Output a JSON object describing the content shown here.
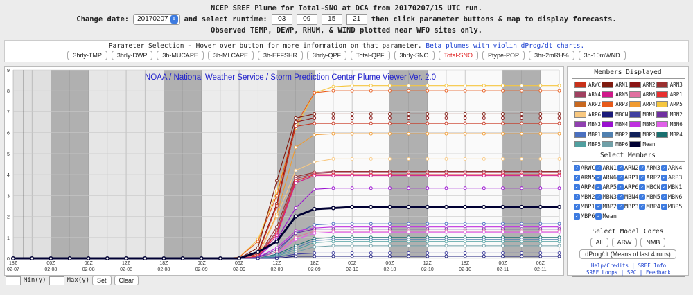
{
  "header": {
    "line1": "NCEP SREF Plume for Total-SNO at DCA from 20170207/15 UTC run.",
    "change_date_label": "Change date:",
    "date_value": "20170207",
    "select_runtime_label": "and select runtime:",
    "runtimes": [
      "03",
      "09",
      "15",
      "21"
    ],
    "line2_tail": "then click parameter buttons & map to display forecasts.",
    "line3": "Observed TEMP, DEWP, RHUM, & WIND plotted near WFO sites only."
  },
  "params": {
    "caption": "Parameter Selection - Hover over button for more information on that parameter.",
    "beta_link": "Beta plumes with violin dProg/dt charts.",
    "buttons": [
      "3hrly-TMP",
      "3hrly-DWP",
      "3h-MUCAPE",
      "3h-MLCAPE",
      "3h-EFFSHR",
      "3hrly-QPF",
      "Total-QPF",
      "3hrly-SNO",
      "Total-SNO",
      "Ptype-POP",
      "3hr-2mRH%",
      "3h-10mWND"
    ],
    "active": "Total-SNO"
  },
  "members_title": "Members Displayed",
  "select_members_title": "Select Members",
  "members": [
    {
      "name": "ARWC",
      "color": "#c8311a"
    },
    {
      "name": "ARN1",
      "color": "#7f1b10"
    },
    {
      "name": "ARN2",
      "color": "#8b1515"
    },
    {
      "name": "ARN3",
      "color": "#9a3030"
    },
    {
      "name": "ARN4",
      "color": "#a04060"
    },
    {
      "name": "ARN5",
      "color": "#d01a8a"
    },
    {
      "name": "ARN6",
      "color": "#e070a0"
    },
    {
      "name": "ARP1",
      "color": "#e83030"
    },
    {
      "name": "ARP2",
      "color": "#c86820"
    },
    {
      "name": "ARP3",
      "color": "#e85a1a"
    },
    {
      "name": "ARP4",
      "color": "#f09a30"
    },
    {
      "name": "ARP5",
      "color": "#f5c640"
    },
    {
      "name": "ARP6",
      "color": "#f8c880"
    },
    {
      "name": "MBCN",
      "color": "#1a1a7a"
    },
    {
      "name": "MBN1",
      "color": "#4040a0"
    },
    {
      "name": "MBN2",
      "color": "#7030a0"
    },
    {
      "name": "MBN3",
      "color": "#9040b0"
    },
    {
      "name": "MBN4",
      "color": "#9a10d0"
    },
    {
      "name": "MBN5",
      "color": "#c030e0"
    },
    {
      "name": "MBN6",
      "color": "#e060e8"
    },
    {
      "name": "MBP1",
      "color": "#4a70c0"
    },
    {
      "name": "MBP2",
      "color": "#5080b0"
    },
    {
      "name": "MBP3",
      "color": "#10205a"
    },
    {
      "name": "MBP4",
      "color": "#1a7070"
    },
    {
      "name": "MBP5",
      "color": "#50a0a0"
    },
    {
      "name": "MBP6",
      "color": "#70a0a8"
    },
    {
      "name": "Mean",
      "color": "#000033"
    }
  ],
  "select_members": [
    "ARWC",
    "ARN1",
    "ARN2",
    "ARN3",
    "ARN4",
    "ARN5",
    "ARN6",
    "ARP1",
    "ARP2",
    "ARP3",
    "ARP4",
    "ARP5",
    "ARP6",
    "MBCN",
    "MBN1",
    "MBN2",
    "MBN3",
    "MBN4",
    "MBN5",
    "MBN6",
    "MBP1",
    "MBP2",
    "MBP3",
    "MBP4",
    "MBP5",
    "MBP6",
    "Mean"
  ],
  "cores": {
    "title": "Select Model Cores",
    "buttons": [
      "All",
      "ARW",
      "NMB"
    ],
    "dprog": "dProg/dt (Means of last 4 runs)"
  },
  "links": {
    "help": "Help/Credits",
    "sref_info": "SREF Info",
    "sref_loops": "SREF Loops",
    "spc": "SPC",
    "feedback": "Feedback"
  },
  "footer": {
    "min_label": "Min(y)",
    "max_label": "Max(y)",
    "set": "Set",
    "clear": "Clear"
  },
  "chart_data": {
    "type": "line",
    "title": "NOAA / National Weather Service / Storm Prediction Center Plume Viewer Ver. 2.0",
    "ylim": [
      0,
      9
    ],
    "yticks": [
      "0",
      "1",
      "2",
      "3",
      "4",
      "5",
      "6",
      "7",
      "8",
      "9"
    ],
    "x_index_range": [
      0,
      29
    ],
    "xticks": [
      {
        "i": 0,
        "hr": "18Z",
        "date": "02-07"
      },
      {
        "i": 2,
        "hr": "00Z",
        "date": "02-08"
      },
      {
        "i": 4,
        "hr": "06Z",
        "date": "02-08"
      },
      {
        "i": 6,
        "hr": "12Z",
        "date": "02-08"
      },
      {
        "i": 8,
        "hr": "18Z",
        "date": "02-08"
      },
      {
        "i": 10,
        "hr": "00Z",
        "date": "02-09"
      },
      {
        "i": 12,
        "hr": "06Z",
        "date": "02-09"
      },
      {
        "i": 14,
        "hr": "12Z",
        "date": "02-09"
      },
      {
        "i": 16,
        "hr": "18Z",
        "date": "02-09"
      },
      {
        "i": 18,
        "hr": "00Z",
        "date": "02-10"
      },
      {
        "i": 20,
        "hr": "06Z",
        "date": "02-10"
      },
      {
        "i": 22,
        "hr": "12Z",
        "date": "02-10"
      },
      {
        "i": 24,
        "hr": "18Z",
        "date": "02-10"
      },
      {
        "i": 26,
        "hr": "00Z",
        "date": "02-11"
      },
      {
        "i": 28,
        "hr": "06Z",
        "date": "02-11"
      }
    ],
    "night_bands": [
      [
        2,
        4
      ],
      [
        8,
        10
      ],
      [
        14,
        16
      ],
      [
        20,
        22
      ],
      [
        26,
        28
      ]
    ],
    "series": [
      {
        "name": "ARP5",
        "color": "#f5c640",
        "finals": [
          0.05,
          0.9,
          3.2,
          6.2,
          7.9,
          8.2,
          8.25
        ]
      },
      {
        "name": "ARP3",
        "color": "#e85a1a",
        "finals": [
          0.05,
          0.8,
          3.0,
          6.4,
          7.9,
          8.0,
          8.0
        ]
      },
      {
        "name": "ARN1",
        "color": "#7f1b10",
        "finals": [
          0.0,
          0.5,
          3.7,
          6.7,
          6.9,
          6.9,
          6.9
        ]
      },
      {
        "name": "ARN2",
        "color": "#8b1515",
        "finals": [
          0.0,
          0.3,
          2.6,
          6.5,
          6.7,
          6.7,
          6.7
        ]
      },
      {
        "name": "ARWC",
        "color": "#c8311a",
        "finals": [
          0.0,
          0.2,
          2.5,
          6.3,
          6.45,
          6.45,
          6.45
        ]
      },
      {
        "name": "ARP4",
        "color": "#f09a30",
        "finals": [
          0.0,
          0.1,
          2.1,
          5.3,
          5.9,
          5.95,
          5.95
        ]
      },
      {
        "name": "ARP6",
        "color": "#f8c880",
        "finals": [
          0.0,
          0.1,
          2.0,
          4.2,
          4.6,
          4.75,
          4.75
        ]
      },
      {
        "name": "ARN3",
        "color": "#9a3030",
        "finals": [
          0.0,
          0.1,
          1.5,
          3.9,
          4.1,
          4.15,
          4.15
        ]
      },
      {
        "name": "ARN4",
        "color": "#a04060",
        "finals": [
          0.0,
          0.1,
          1.3,
          3.8,
          4.05,
          4.1,
          4.1
        ]
      },
      {
        "name": "ARP1",
        "color": "#e83030",
        "finals": [
          0.0,
          0.1,
          1.2,
          3.7,
          4.0,
          4.0,
          4.0
        ]
      },
      {
        "name": "ARN5",
        "color": "#d01a8a",
        "finals": [
          0.0,
          0.05,
          1.1,
          3.6,
          3.95,
          3.95,
          3.95
        ]
      },
      {
        "name": "MBN4",
        "color": "#9a10d0",
        "finals": [
          0.0,
          0.05,
          0.9,
          2.4,
          3.3,
          3.35,
          3.35
        ]
      },
      {
        "name": "Mean",
        "color": "#000033",
        "width": 3,
        "finals": [
          0.0,
          0.3,
          0.8,
          2.0,
          2.35,
          2.4,
          2.45
        ]
      },
      {
        "name": "MBP1",
        "color": "#4a70c0",
        "finals": [
          0.0,
          0.05,
          0.3,
          1.2,
          1.6,
          1.65,
          1.65
        ]
      },
      {
        "name": "MBN5",
        "color": "#c030e0",
        "finals": [
          0.0,
          0.05,
          0.5,
          1.3,
          1.45,
          1.5,
          1.5
        ]
      },
      {
        "name": "MBN2",
        "color": "#7030a0",
        "finals": [
          0.0,
          0.05,
          0.4,
          1.2,
          1.4,
          1.4,
          1.4
        ]
      },
      {
        "name": "ARN6",
        "color": "#e070a0",
        "finals": [
          0.0,
          0.0,
          0.3,
          1.0,
          1.3,
          1.3,
          1.3
        ]
      },
      {
        "name": "MBN6",
        "color": "#e060e8",
        "finals": [
          0.0,
          0.0,
          0.2,
          0.9,
          1.2,
          1.25,
          1.25
        ]
      },
      {
        "name": "MBP4",
        "color": "#1a7070",
        "finals": [
          0.0,
          0.0,
          0.2,
          0.6,
          0.95,
          1.0,
          1.0
        ]
      },
      {
        "name": "MBP2",
        "color": "#5080b0",
        "finals": [
          0.0,
          0.0,
          0.15,
          0.5,
          0.85,
          0.9,
          0.9
        ]
      },
      {
        "name": "MBP5",
        "color": "#50a0a0",
        "finals": [
          0.0,
          0.0,
          0.1,
          0.4,
          0.75,
          0.8,
          0.8
        ]
      },
      {
        "name": "MBP6",
        "color": "#70a0a8",
        "finals": [
          0.0,
          0.0,
          0.05,
          0.3,
          0.55,
          0.6,
          0.6
        ]
      },
      {
        "name": "MBN1",
        "color": "#4040a0",
        "finals": [
          0.0,
          0.0,
          0.05,
          0.2,
          0.25,
          0.25,
          0.25
        ]
      },
      {
        "name": "MBCN",
        "color": "#1a1a7a",
        "finals": [
          0.0,
          0.0,
          0.0,
          0.1,
          0.1,
          0.1,
          0.1
        ]
      }
    ]
  }
}
